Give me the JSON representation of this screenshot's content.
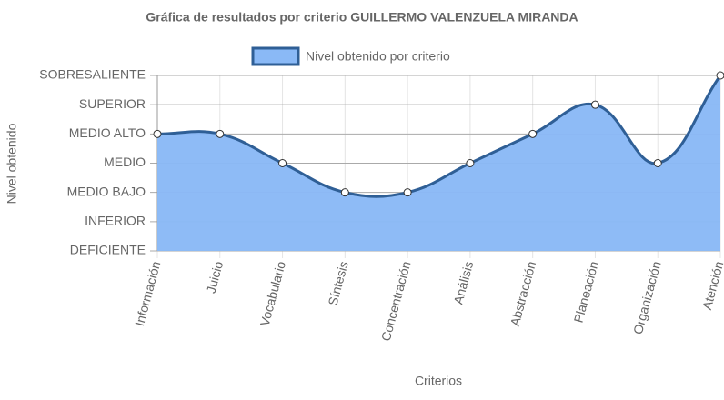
{
  "chart_data": {
    "type": "line",
    "title": "Gráfica de resultados por criterio GUILLERMO VALENZUELA MIRANDA",
    "x_label": "Criterios",
    "y_label": "Nivel obtenido",
    "categories": [
      "Información",
      "Juicio",
      "Vocabulario",
      "Síntesis",
      "Concentración",
      "Análisis",
      "Abstracción",
      "Planeación",
      "Organización",
      "Atención"
    ],
    "series": [
      {
        "name": "Nivel obtenido por criterio",
        "color": "#2f5f96",
        "fill": "#8ab9f6",
        "values": [
          4,
          4,
          3,
          2,
          2,
          3,
          4,
          5,
          3,
          6
        ]
      }
    ],
    "ylim": [
      0,
      6
    ],
    "yticks": [
      {
        "value": 0,
        "label": "DEFICIENTE"
      },
      {
        "value": 1,
        "label": "INFERIOR"
      },
      {
        "value": 2,
        "label": "MEDIO BAJO"
      },
      {
        "value": 3,
        "label": "MEDIO"
      },
      {
        "value": 4,
        "label": "MEDIO ALTO"
      },
      {
        "value": 5,
        "label": "SUPERIOR"
      },
      {
        "value": 6,
        "label": "SOBRESALIENTE"
      }
    ],
    "grid": true,
    "legend": "top"
  }
}
